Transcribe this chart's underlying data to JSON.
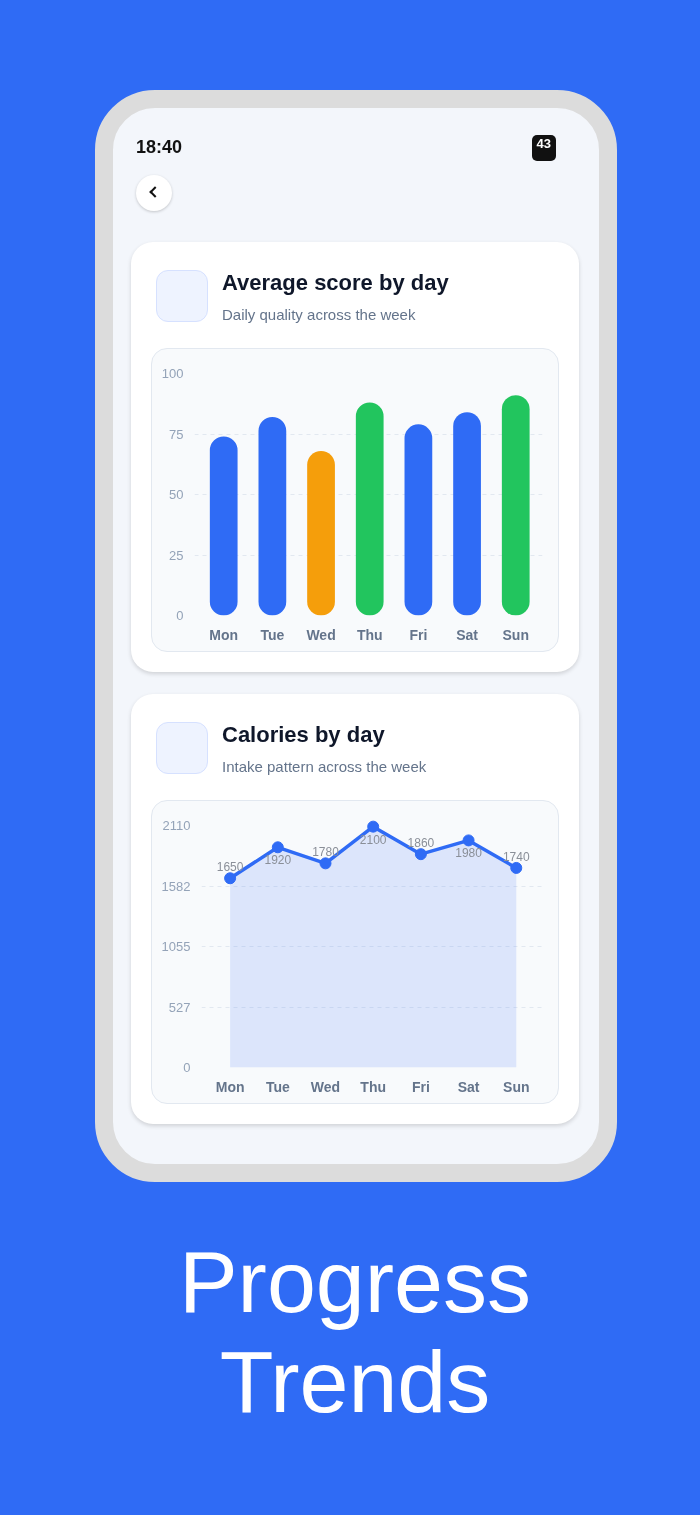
{
  "chart_data": [
    {
      "type": "bar",
      "title": "Average score by day",
      "subtitle": "Daily quality across the week",
      "annotations": [
        "18:40",
        "43"
      ],
      "categories": [
        "Mon",
        "Tue",
        "Wed",
        "Thu",
        "Fri",
        "Sat",
        "Sun"
      ],
      "values": [
        74,
        82,
        68,
        88,
        79,
        84,
        91
      ],
      "colors": [
        "#2f6bf5",
        "#2f6bf5",
        "#f59e0b",
        "#22c55e",
        "#2f6bf5",
        "#2f6bf5",
        "#22c55e"
      ],
      "ylim": [
        0,
        100
      ],
      "yticks": [
        0,
        25,
        50,
        75,
        100
      ],
      "grid": "y"
    },
    {
      "type": "area",
      "title": "Calories by day",
      "subtitle": "Intake pattern across the week",
      "annotations": [
        "Progress Trends"
      ],
      "categories": [
        "Mon",
        "Tue",
        "Wed",
        "Thu",
        "Fri",
        "Sat",
        "Sun"
      ],
      "series": [
        {
          "color": "#2f6bf5",
          "values": [
            1650,
            1920,
            1780,
            2100,
            1860,
            1980,
            1740
          ]
        }
      ],
      "marker": "circle",
      "data_labels": true,
      "ylim": [
        0,
        2110
      ],
      "yticks": [
        0,
        527,
        1055,
        1582,
        2110
      ],
      "grid": "y"
    }
  ]
}
